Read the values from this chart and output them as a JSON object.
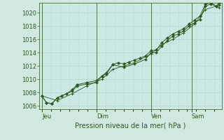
{
  "background_color": "#d0e8e0",
  "plot_bg_color": "#cce8e4",
  "grid_color": "#b0d4cc",
  "line_color": "#2d5a1e",
  "marker_color": "#2d5a1e",
  "ylim": [
    1005.5,
    1021.5
  ],
  "yticks": [
    1006,
    1008,
    1010,
    1012,
    1014,
    1016,
    1018,
    1020
  ],
  "xlabel": "Pression niveau de la mer( hPa )",
  "xtick_labels": [
    "Jeu",
    "Dim",
    "Ven",
    "Sam"
  ],
  "day_positions": [
    0.0,
    1.0,
    2.0,
    2.75
  ],
  "xlim": [
    -0.05,
    3.3
  ],
  "line1_x": [
    0.0,
    0.08,
    0.18,
    0.28,
    0.36,
    0.45,
    0.55,
    0.65,
    0.82,
    1.0,
    1.1,
    1.18,
    1.3,
    1.4,
    1.5,
    1.6,
    1.7,
    1.8,
    1.9,
    2.0,
    2.1,
    2.2,
    2.3,
    2.4,
    2.5,
    2.6,
    2.7,
    2.8,
    2.9,
    3.0,
    3.1,
    3.2,
    3.25
  ],
  "line1_y": [
    1007.5,
    1006.5,
    1006.3,
    1007.2,
    1007.5,
    1007.8,
    1008.4,
    1009.2,
    1009.5,
    1009.8,
    1010.5,
    1010.8,
    1012.2,
    1012.5,
    1012.3,
    1012.6,
    1012.9,
    1013.2,
    1013.5,
    1014.3,
    1014.4,
    1015.5,
    1016.2,
    1016.8,
    1017.2,
    1017.6,
    1018.3,
    1018.9,
    1019.5,
    1021.3,
    1021.5,
    1021.0,
    1021.5
  ],
  "line2_x": [
    0.0,
    0.08,
    0.18,
    0.28,
    0.36,
    0.55,
    0.65,
    0.82,
    1.0,
    1.1,
    1.18,
    1.3,
    1.5,
    1.7,
    1.9,
    2.0,
    2.1,
    2.2,
    2.3,
    2.4,
    2.5,
    2.6,
    2.7,
    2.8,
    2.9,
    3.0,
    3.1,
    3.2,
    3.25
  ],
  "line2_y": [
    1007.5,
    1006.5,
    1006.3,
    1007.2,
    1007.5,
    1008.2,
    1009.0,
    1009.3,
    1009.5,
    1010.5,
    1011.0,
    1012.2,
    1011.8,
    1012.3,
    1013.0,
    1014.0,
    1014.0,
    1015.0,
    1015.8,
    1016.5,
    1016.8,
    1017.3,
    1018.0,
    1018.5,
    1019.0,
    1021.0,
    1021.3,
    1021.0,
    1021.2
  ],
  "line3_x": [
    0.0,
    0.28,
    0.55,
    0.82,
    1.1,
    1.3,
    1.5,
    1.7,
    2.0,
    2.2,
    2.4,
    2.6,
    2.8,
    3.0,
    3.2,
    3.25
  ],
  "line3_y": [
    1007.5,
    1006.8,
    1007.8,
    1009.0,
    1010.0,
    1011.5,
    1012.0,
    1012.5,
    1013.8,
    1015.2,
    1016.0,
    1017.0,
    1018.3,
    1020.5,
    1021.0,
    1020.8
  ],
  "vline_positions": [
    0.0,
    1.0,
    2.0,
    2.75
  ],
  "vline_color": "#4a7a4a",
  "ylabel_color": "#2d5a1e",
  "xlabel_color": "#2d5a1e",
  "xtick_color": "#2d5a1e",
  "title_fontsize": 7,
  "tick_fontsize": 6,
  "xlabel_fontsize": 7
}
